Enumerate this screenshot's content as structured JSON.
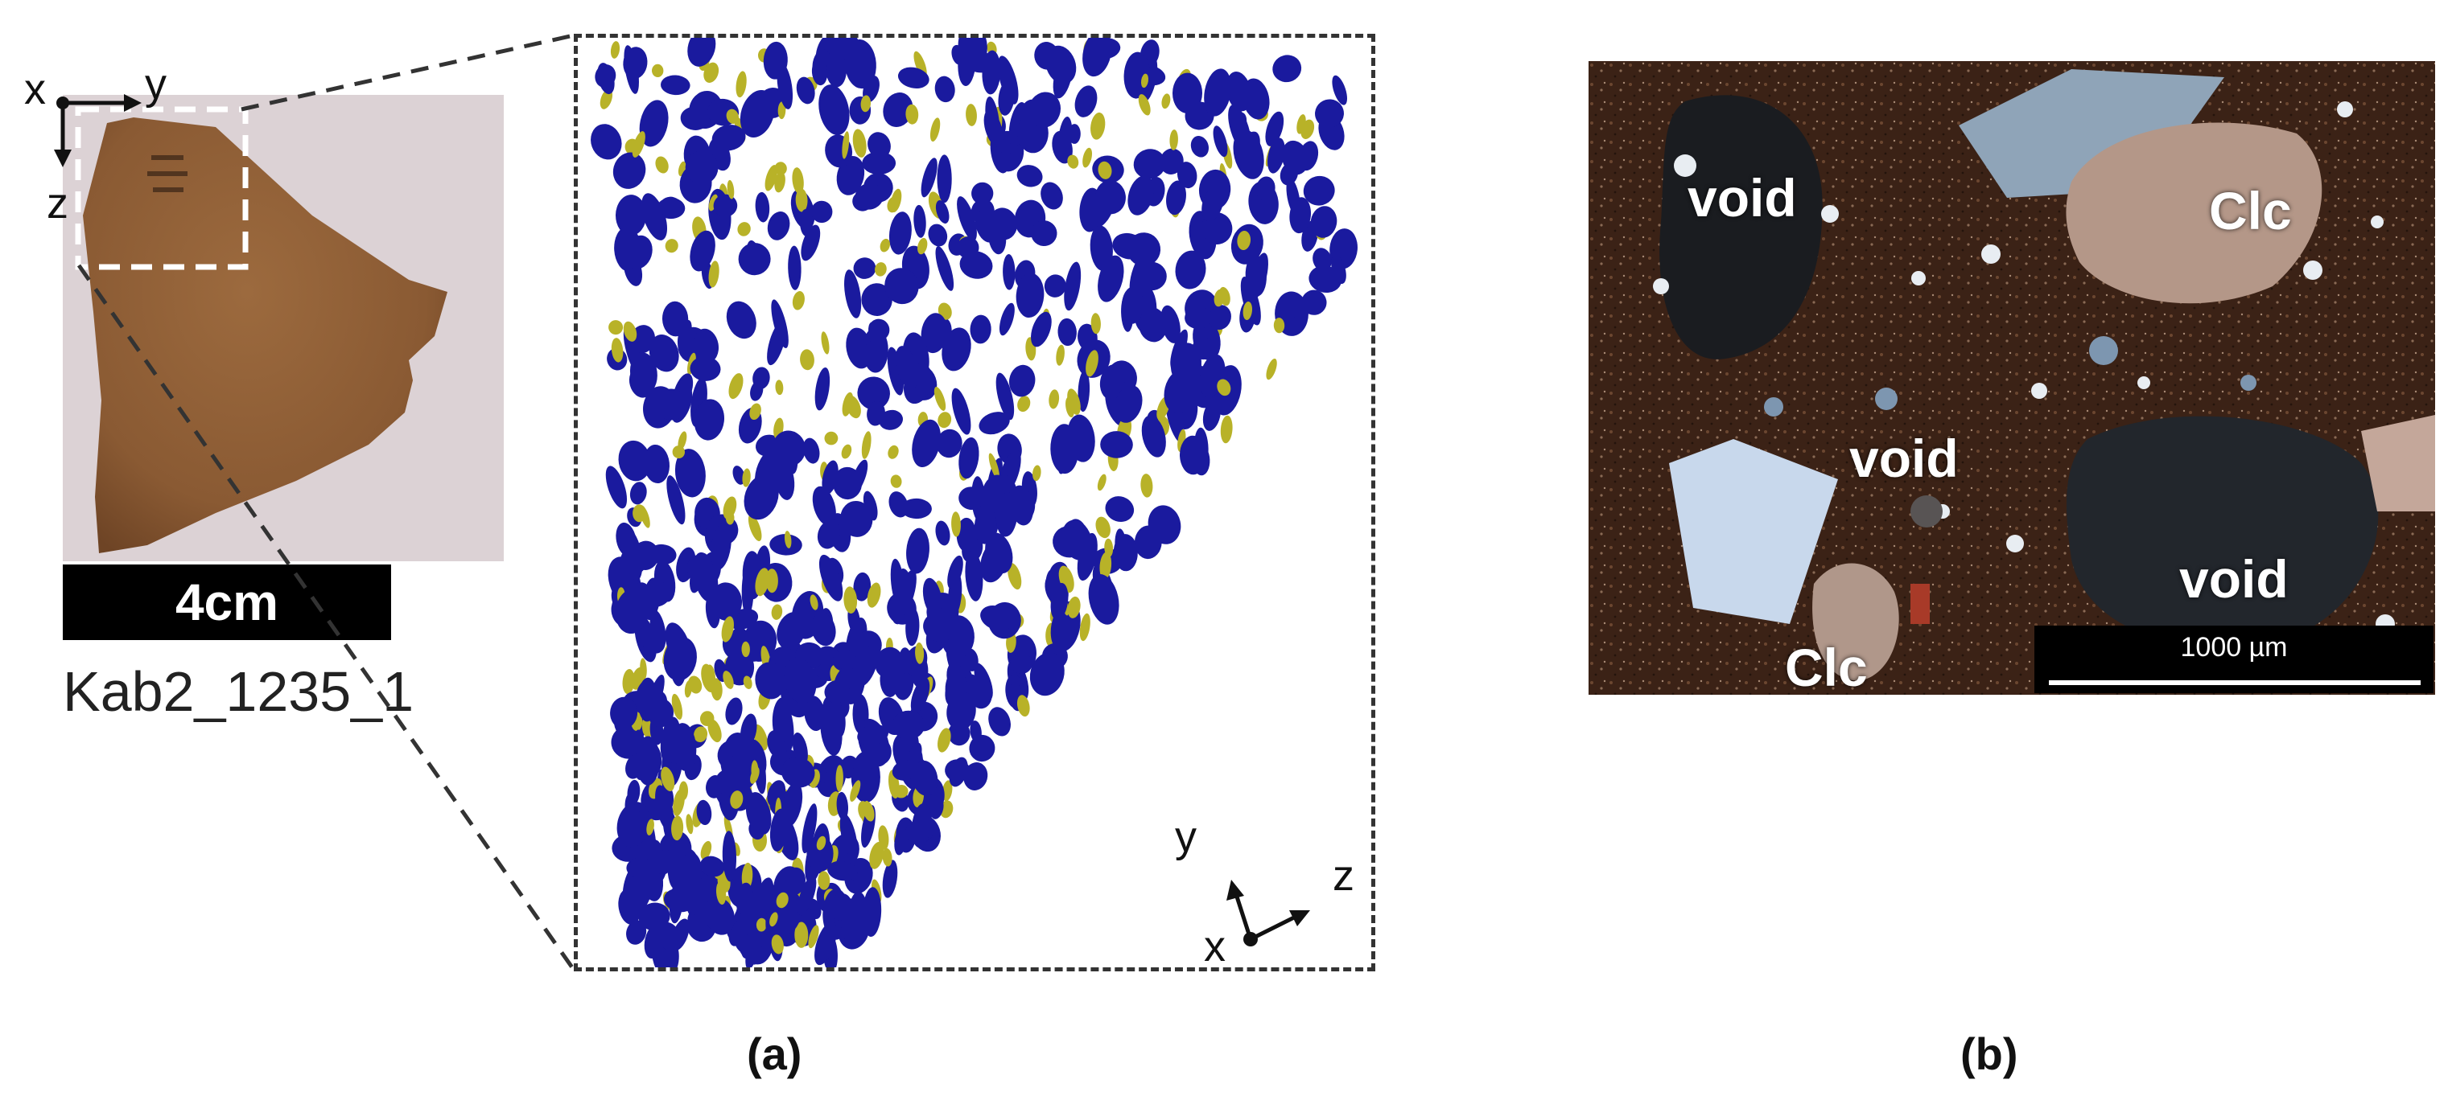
{
  "panel_a": {
    "photo_axes": {
      "x": "x",
      "y": "y",
      "z": "z"
    },
    "scale_label": "4cm",
    "sample_id": "Kab2_1235_1",
    "view_axes": {
      "x": "x",
      "y": "y",
      "z": "z"
    },
    "caption": "(a)"
  },
  "panel_b": {
    "labels": [
      {
        "id": "void-top-left",
        "text": "void"
      },
      {
        "id": "clc-top-right",
        "text": "Clc"
      },
      {
        "id": "void-center",
        "text": "void"
      },
      {
        "id": "void-bottom-right",
        "text": "void"
      },
      {
        "id": "clc-bottom-left",
        "text": "Clc"
      }
    ],
    "scale_label": "1000 µm",
    "caption": "(b)"
  },
  "colors": {
    "pore_blue": "#1a1a9e",
    "inclusion_yellow": "#b8b228",
    "sherd_brown": "#8a5a33",
    "micro_matrix": "#3b2216"
  }
}
